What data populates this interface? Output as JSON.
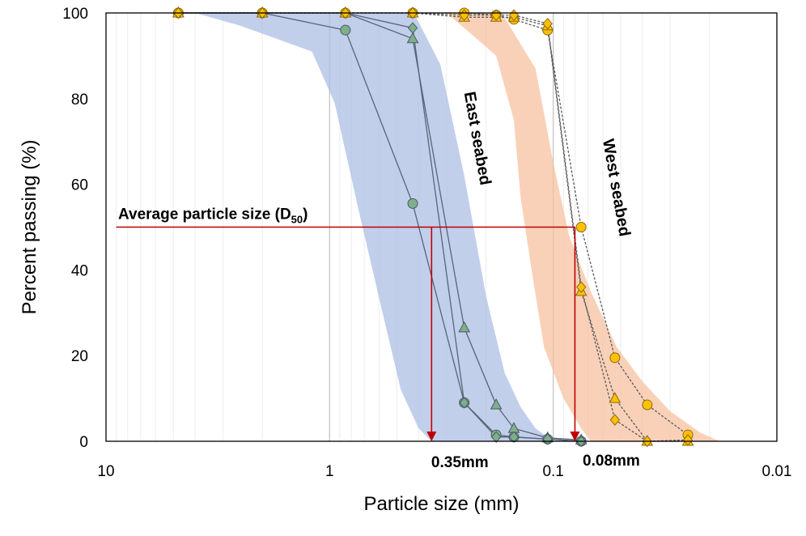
{
  "chart_data": {
    "type": "scatter",
    "xlabel": "Particle size (mm)",
    "ylabel": "Percent passing (%)",
    "x_scale": "log",
    "x_reversed": true,
    "xlim": [
      10,
      0.01
    ],
    "ylim": [
      0,
      100
    ],
    "x_ticks": [
      10,
      1,
      0.1,
      0.01
    ],
    "x_tick_labels": [
      "10",
      "1",
      "0.1",
      "0.01"
    ],
    "y_ticks": [
      0,
      20,
      40,
      60,
      80,
      100
    ],
    "y_tick_labels": [
      "0",
      "20",
      "40",
      "60",
      "80",
      "100"
    ],
    "grid": "minor vertical log gridlines",
    "colors": {
      "east_band": "#a9bde3",
      "west_band": "#f6bf9d",
      "east_marker_fill": "#7fae8b",
      "west_marker_fill": "#ffc000",
      "east_line": "#5a6478",
      "west_line": "#5a5a5a",
      "d50_line": "#c00000"
    },
    "annotations": {
      "d50_label_main": "Average particle size (D",
      "d50_label_sub": "50",
      "d50_label_close": ")",
      "east_band_label": "East seabed",
      "west_band_label": "West seabed",
      "east_d50_label": "0.35mm",
      "west_d50_label": "0.08mm",
      "d50_percent": 50,
      "east_d50": 0.35,
      "west_d50": 0.08
    },
    "bands": [
      {
        "group": "east",
        "upper": [
          [
            5,
            100
          ],
          [
            2,
            100
          ],
          [
            0.6,
            100
          ],
          [
            0.42,
            100
          ],
          [
            0.32,
            88
          ],
          [
            0.25,
            62
          ],
          [
            0.2,
            34
          ],
          [
            0.165,
            16
          ],
          [
            0.14,
            8
          ],
          [
            0.12,
            3
          ],
          [
            0.1,
            0
          ]
        ],
        "lower": [
          [
            4,
            100
          ],
          [
            2.5,
            97
          ],
          [
            1.2,
            91
          ],
          [
            0.95,
            79
          ],
          [
            0.75,
            55
          ],
          [
            0.58,
            30
          ],
          [
            0.48,
            12
          ],
          [
            0.4,
            3
          ],
          [
            0.35,
            0
          ]
        ]
      },
      {
        "group": "west",
        "upper": [
          [
            0.5,
            100
          ],
          [
            0.17,
            100
          ],
          [
            0.12,
            87
          ],
          [
            0.1,
            65
          ],
          [
            0.085,
            48
          ],
          [
            0.068,
            35
          ],
          [
            0.052,
            22
          ],
          [
            0.04,
            14
          ],
          [
            0.03,
            7
          ],
          [
            0.022,
            2
          ],
          [
            0.018,
            0
          ]
        ],
        "lower": [
          [
            0.3,
            100
          ],
          [
            0.22,
            94
          ],
          [
            0.18,
            90
          ],
          [
            0.15,
            75
          ],
          [
            0.14,
            57
          ],
          [
            0.125,
            40
          ],
          [
            0.11,
            22
          ],
          [
            0.09,
            10
          ],
          [
            0.075,
            3
          ],
          [
            0.068,
            0
          ]
        ]
      }
    ],
    "series": [
      {
        "group": "east",
        "marker": "circle",
        "points": [
          [
            4.75,
            100
          ],
          [
            2,
            100
          ],
          [
            0.85,
            96
          ],
          [
            0.425,
            55.5
          ],
          [
            0.25,
            9
          ],
          [
            0.18,
            1.5
          ],
          [
            0.15,
            1
          ],
          [
            0.106,
            0.5
          ],
          [
            0.075,
            0
          ]
        ]
      },
      {
        "group": "east",
        "marker": "triangle",
        "points": [
          [
            4.75,
            100
          ],
          [
            2,
            100
          ],
          [
            0.85,
            100
          ],
          [
            0.425,
            94
          ],
          [
            0.25,
            26.5
          ],
          [
            0.18,
            8.5
          ],
          [
            0.15,
            3
          ],
          [
            0.106,
            0.8
          ],
          [
            0.075,
            0.3
          ]
        ]
      },
      {
        "group": "east",
        "marker": "diamond",
        "points": [
          [
            4.75,
            100
          ],
          [
            2,
            100
          ],
          [
            0.85,
            100
          ],
          [
            0.425,
            96.5
          ],
          [
            0.25,
            9
          ],
          [
            0.18,
            1
          ],
          [
            0.15,
            1
          ],
          [
            0.106,
            0.5
          ],
          [
            0.075,
            0
          ]
        ]
      },
      {
        "group": "west",
        "marker": "circle",
        "points": [
          [
            4.75,
            100
          ],
          [
            2,
            100
          ],
          [
            0.85,
            100
          ],
          [
            0.425,
            100
          ],
          [
            0.25,
            100
          ],
          [
            0.18,
            99.5
          ],
          [
            0.15,
            98.5
          ],
          [
            0.106,
            96
          ],
          [
            0.075,
            50
          ],
          [
            0.053,
            19.5
          ],
          [
            0.038,
            8.5
          ],
          [
            0.025,
            1.5
          ]
        ]
      },
      {
        "group": "west",
        "marker": "triangle",
        "points": [
          [
            4.75,
            100
          ],
          [
            2,
            100
          ],
          [
            0.85,
            100
          ],
          [
            0.425,
            100
          ],
          [
            0.25,
            99
          ],
          [
            0.18,
            99
          ],
          [
            0.15,
            99
          ],
          [
            0.106,
            97
          ],
          [
            0.075,
            35
          ],
          [
            0.053,
            10
          ],
          [
            0.038,
            0
          ],
          [
            0.025,
            0
          ]
        ]
      },
      {
        "group": "west",
        "marker": "diamond",
        "points": [
          [
            4.75,
            100
          ],
          [
            2,
            100
          ],
          [
            0.85,
            100
          ],
          [
            0.425,
            100
          ],
          [
            0.25,
            99.5
          ],
          [
            0.18,
            99.5
          ],
          [
            0.15,
            99.5
          ],
          [
            0.106,
            97.5
          ],
          [
            0.075,
            36
          ],
          [
            0.053,
            5
          ],
          [
            0.038,
            0
          ],
          [
            0.025,
            0.3
          ]
        ]
      }
    ]
  }
}
